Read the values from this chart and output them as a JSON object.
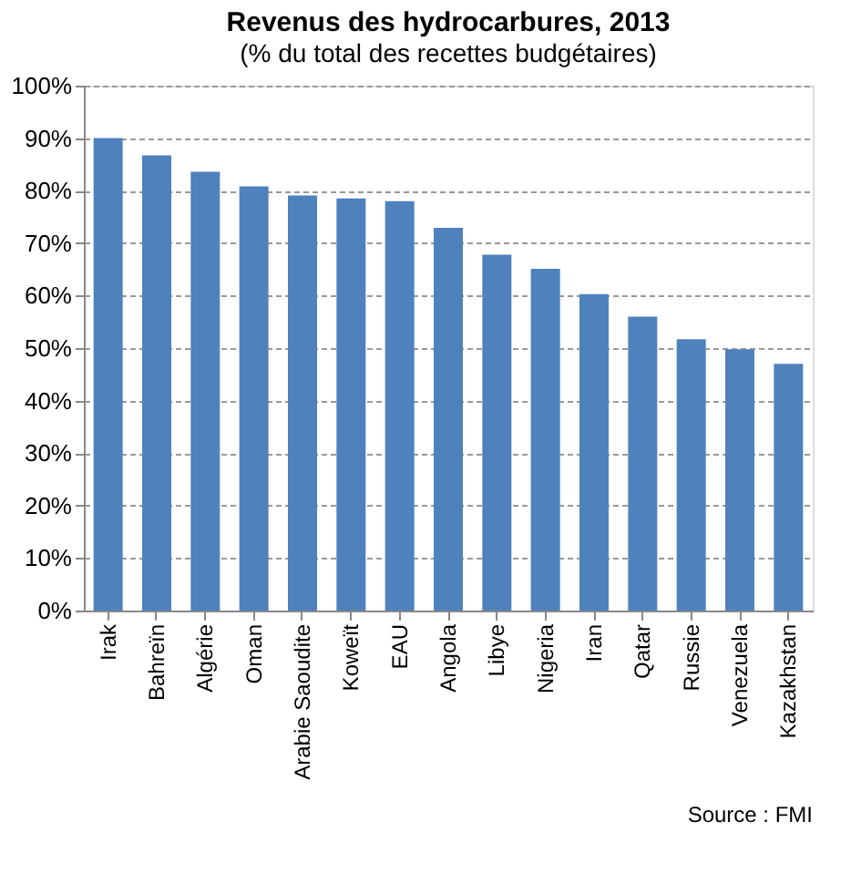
{
  "chart_data": {
    "type": "bar",
    "title": "Revenus des hydrocarbures, 2013",
    "subtitle": "(% du total des recettes budgétaires)",
    "categories": [
      "Irak",
      "Bahreïn",
      "Algérie",
      "Oman",
      "Arabie Saoudite",
      "Koweït",
      "EAU",
      "Angola",
      "Libye",
      "Nigeria",
      "Iran",
      "Qatar",
      "Russie",
      "Venezuela",
      "Kazakhstan"
    ],
    "values": [
      90,
      86.7,
      83.6,
      80.8,
      79.1,
      78.5,
      78.0,
      72.9,
      67.8,
      65.1,
      60.3,
      56.0,
      51.7,
      49.8,
      47.0
    ],
    "color": "#4f81bd",
    "ylim": [
      0,
      100
    ],
    "yticks": [
      {
        "value": 0,
        "label": "0%"
      },
      {
        "value": 10,
        "label": "10%"
      },
      {
        "value": 20,
        "label": "20%"
      },
      {
        "value": 30,
        "label": "30%"
      },
      {
        "value": 40,
        "label": "40%"
      },
      {
        "value": 50,
        "label": "50%"
      },
      {
        "value": 60,
        "label": "60%"
      },
      {
        "value": 70,
        "label": "70%"
      },
      {
        "value": 80,
        "label": "80%"
      },
      {
        "value": 90,
        "label": "90%"
      },
      {
        "value": 100,
        "label": "100%"
      }
    ],
    "grid": "y",
    "annotations": [
      "Source : FMI"
    ]
  }
}
